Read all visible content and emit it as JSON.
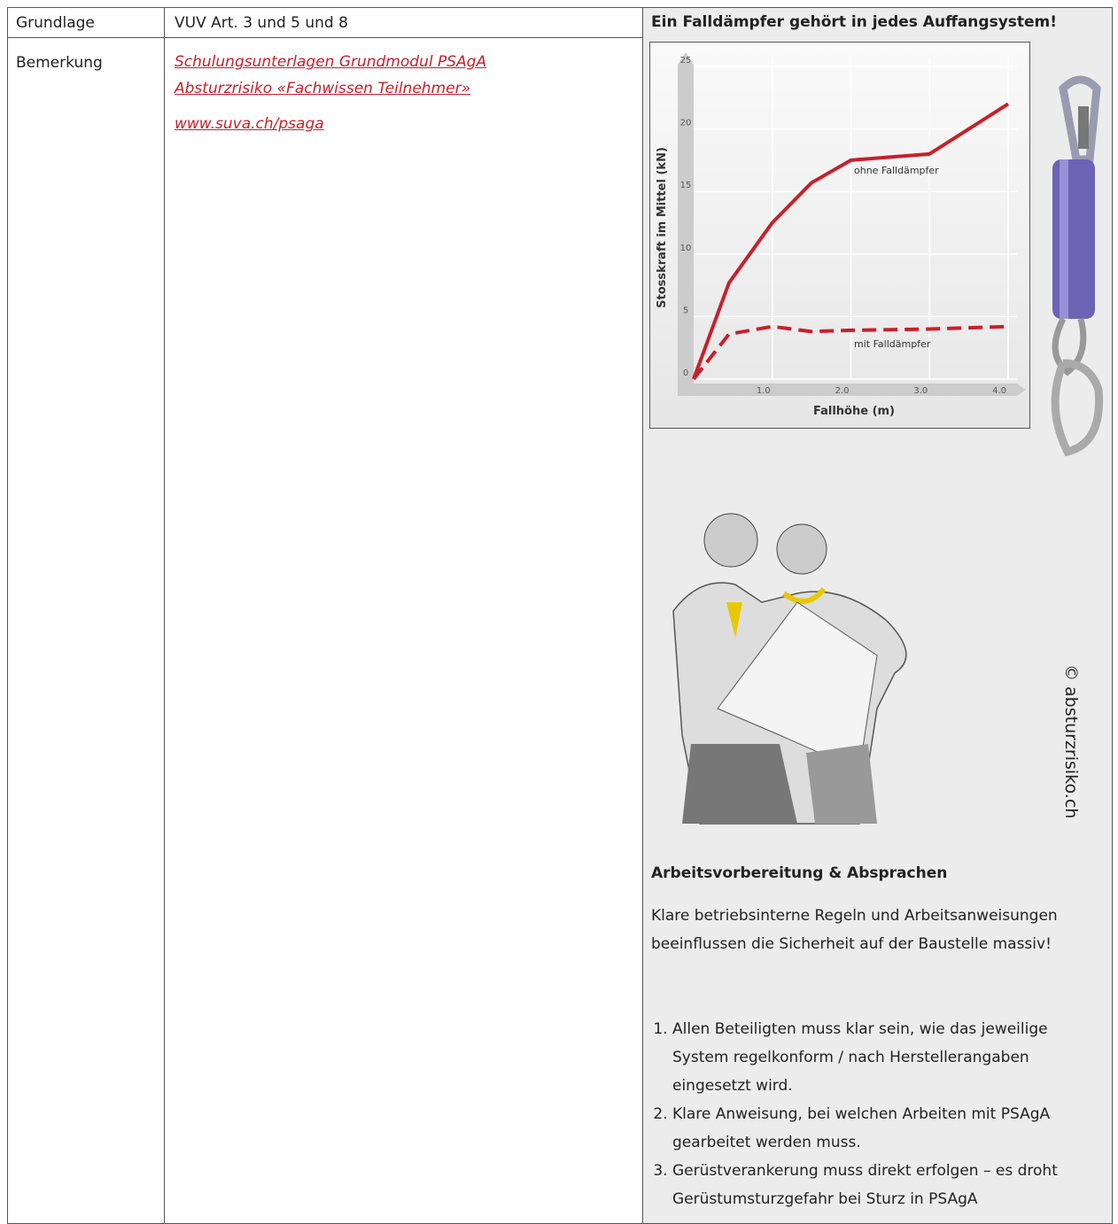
{
  "table": {
    "rows": [
      {
        "label": "Grundlage",
        "content": "VUV Art. 3 und 5 und 8"
      },
      {
        "label": "Bemerkung",
        "links": [
          "Schulungsunterlagen Grundmodul PSAgA Absturzrisiko «Fachwissen Teilnehmer»",
          "www.suva.ch/psaga"
        ]
      }
    ]
  },
  "panel": {
    "title": "Ein Falldämpfer gehört in jedes Auffangsystem!",
    "credit": "© absturzrisiko.ch",
    "heading": "Arbeitsvorbereitung & Absprachen",
    "paragraph": "Klare betriebsinterne Regeln und Arbeitsanweisungen beeinflussen die Sicherheit auf der Baustelle massiv!",
    "list": [
      "Allen Beteiligten muss klar sein, wie das jeweilige System regelkonform / nach Herstellerangaben eingesetzt wird.",
      "Klare Anweisung, bei welchen Arbeiten mit PSAgA gearbeitet werden muss.",
      "Gerüstverankerung muss direkt erfolgen – es droht Gerüstumsturzgefahr bei Sturz in PSAgA"
    ]
  },
  "chart_data": {
    "type": "line",
    "x_label": "Fallhöhe (m)",
    "y_label": "Stosskraft im Mittel (kN)",
    "x": [
      0,
      0.45,
      1,
      1.5,
      2,
      3,
      4
    ],
    "series": [
      {
        "name": "ohne Falldämpfer",
        "color": "#c8202b",
        "values": [
          0,
          7.7,
          12.5,
          15.7,
          17.5,
          18,
          22
        ]
      },
      {
        "name": "mit Falldämpfer",
        "color": "#c8202b",
        "dashed": true,
        "values": [
          0,
          3.6,
          4.2,
          3.8,
          3.9,
          4,
          4.2
        ]
      }
    ],
    "xlim": [
      0,
      4
    ],
    "ylim": [
      0,
      25
    ],
    "xticks": [
      {
        "value": 1,
        "label": "1.0"
      },
      {
        "value": 2,
        "label": "2.0"
      },
      {
        "value": 3,
        "label": "3.0"
      },
      {
        "value": 4,
        "label": "4.0"
      }
    ],
    "yticks": [
      0,
      5,
      10,
      15,
      20,
      25
    ],
    "grid": true
  }
}
